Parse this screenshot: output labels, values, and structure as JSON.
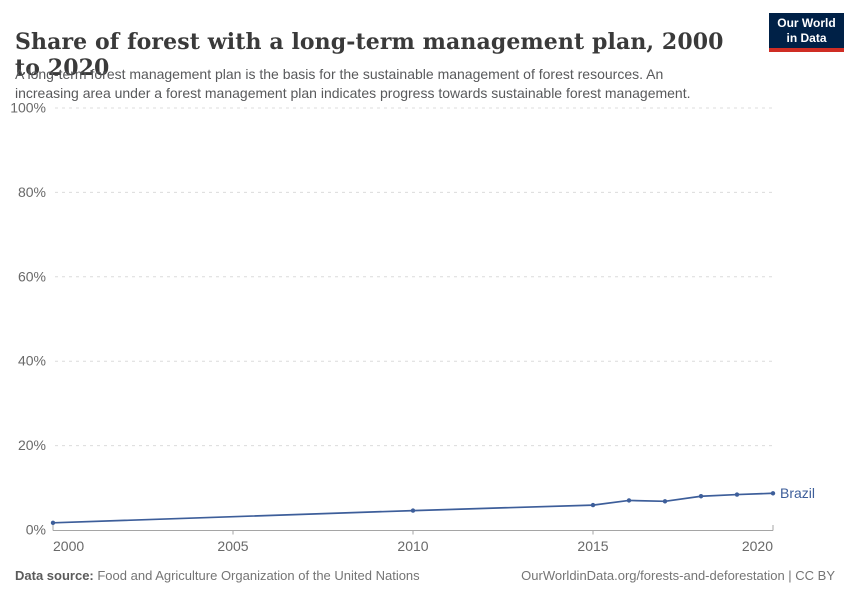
{
  "header": {
    "title": "Share of forest with a long-term management plan, 2000 to 2020",
    "subtitle": "A long-term forest management plan is the basis for the sustainable management of forest resources. An\nincreasing area under a forest management plan indicates progress towards sustainable forest management.",
    "logo": {
      "line1": "Our World",
      "line2": "in Data",
      "bg_color": "#002147",
      "bar_color": "#cf2d24"
    }
  },
  "chart_data": {
    "type": "line",
    "title": "Share of forest with a long-term management plan, 2000 to 2020",
    "xlabel": "",
    "ylabel": "",
    "xlim": [
      2000,
      2020
    ],
    "ylim": [
      0,
      100
    ],
    "x_ticks": [
      2000,
      2005,
      2010,
      2015,
      2020
    ],
    "y_ticks": [
      0,
      20,
      40,
      60,
      80,
      100
    ],
    "y_tick_suffix": "%",
    "grid": "horizontal-dashed",
    "legend_position": "end-of-line-label",
    "series": [
      {
        "name": "Brazil",
        "color": "#3d5e9a",
        "points": [
          [
            2000,
            1.7
          ],
          [
            2010,
            4.6
          ],
          [
            2015,
            5.9
          ],
          [
            2016,
            7.0
          ],
          [
            2017,
            6.8
          ],
          [
            2018,
            8.0
          ],
          [
            2019,
            8.4
          ],
          [
            2020,
            8.7
          ]
        ]
      }
    ],
    "colors": {
      "grid": "#dcdcdc",
      "axis": "#a5a5a5",
      "tick_label": "#696969"
    }
  },
  "footer": {
    "datasource_label": "Data source:",
    "datasource_value": " Food and Agriculture Organization of the United Nations",
    "credit": "OurWorldinData.org/forests-and-deforestation | CC BY"
  }
}
